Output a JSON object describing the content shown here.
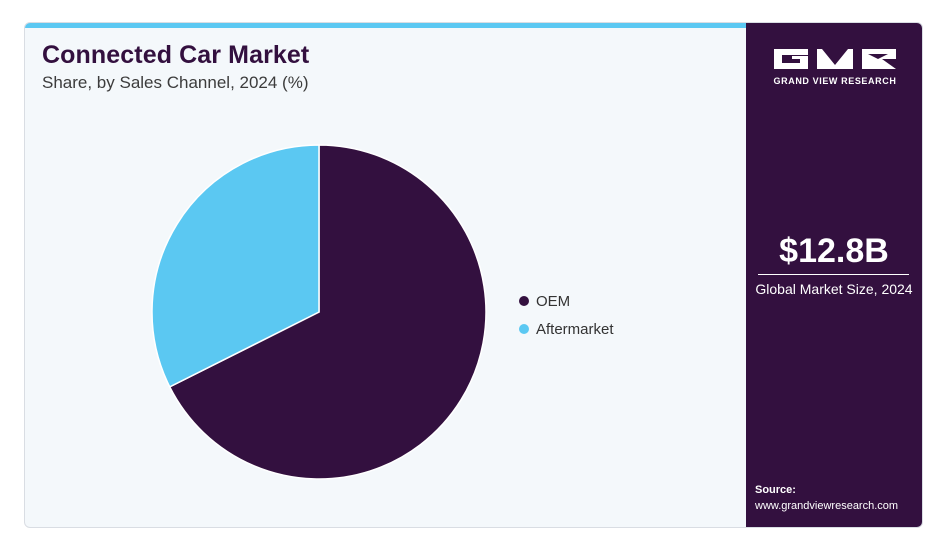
{
  "chart_data": {
    "type": "pie",
    "title": "Connected Car Market",
    "subtitle": "Share, by Sales Channel, 2024 (%)",
    "categories": [
      "OEM",
      "Aftermarket"
    ],
    "values": [
      67.6,
      32.4
    ],
    "colors": [
      "#33103f",
      "#5bc8f2"
    ],
    "legend": "right"
  },
  "sidebar": {
    "brand": "GRAND VIEW RESEARCH",
    "market_value": "$12.8B",
    "market_label": "Global Market Size, 2024",
    "source_label": "Source:",
    "source_url": "www.grandviewresearch.com",
    "background_color": "#33103f"
  }
}
